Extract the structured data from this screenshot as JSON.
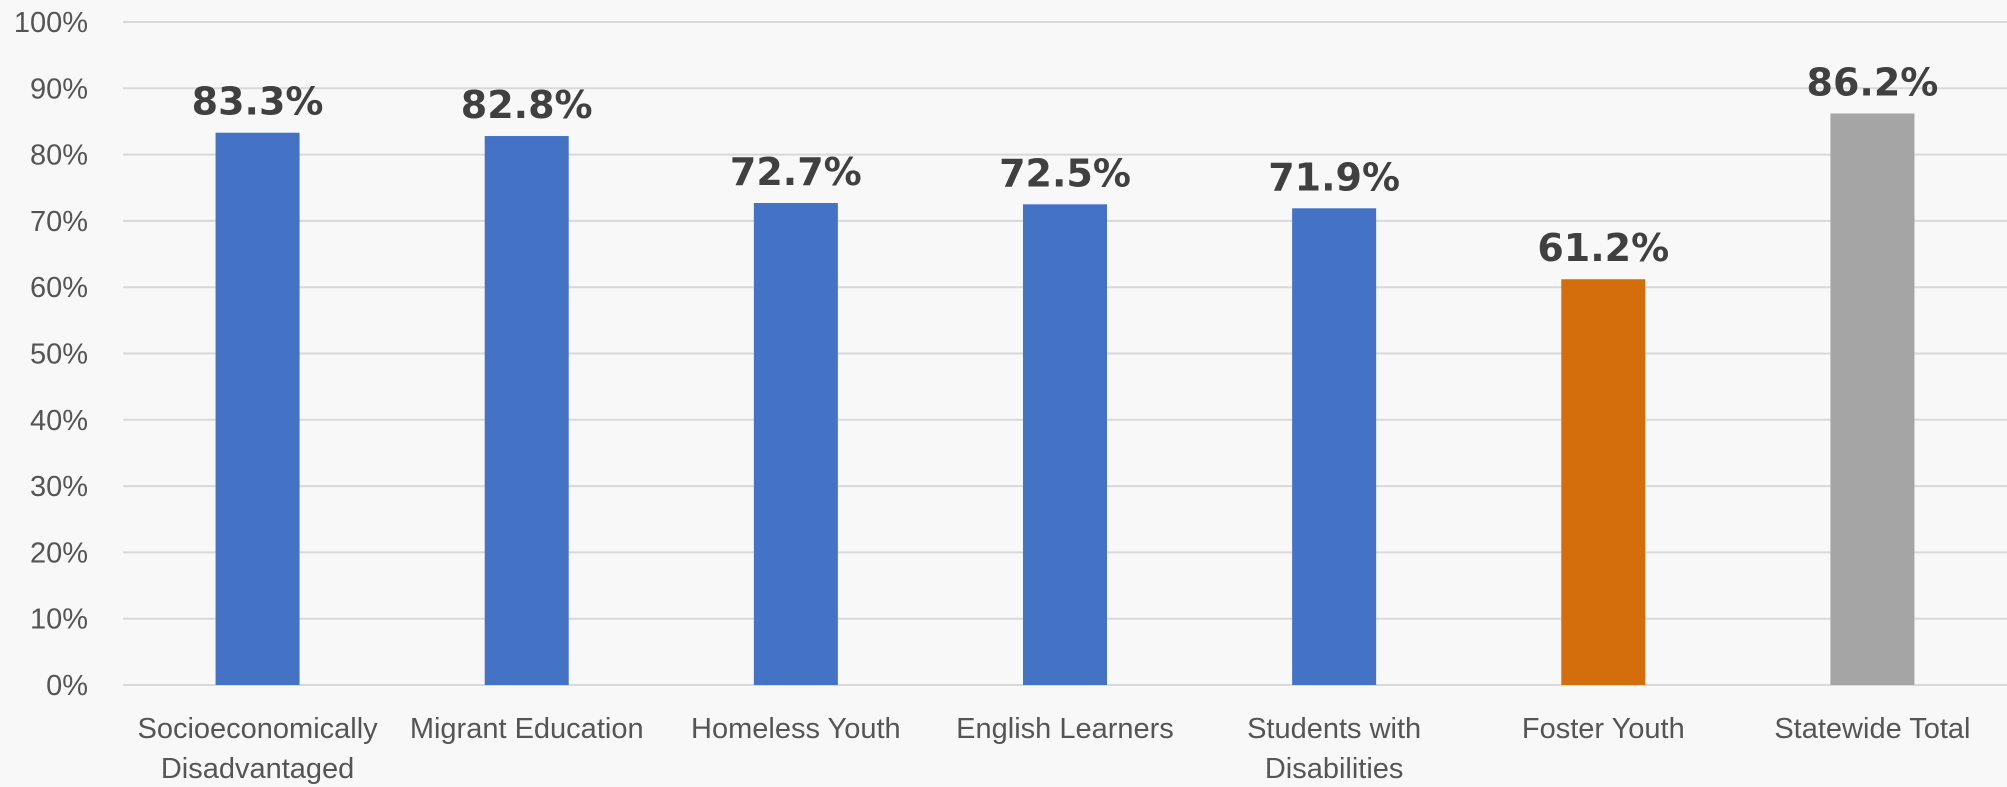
{
  "chart_data": {
    "type": "bar",
    "categories": [
      [
        "Socioeconomically",
        "Disadvantaged"
      ],
      [
        "Migrant Education"
      ],
      [
        "Homeless Youth"
      ],
      [
        "English Learners"
      ],
      [
        "Students with",
        "Disabilities"
      ],
      [
        "Foster Youth"
      ],
      [
        "Statewide Total"
      ]
    ],
    "values": [
      83.3,
      82.8,
      72.7,
      72.5,
      71.9,
      61.2,
      86.2
    ],
    "data_labels": [
      "83.3%",
      "82.8%",
      "72.7%",
      "72.5%",
      "71.9%",
      "61.2%",
      "86.2%"
    ],
    "bar_colors": [
      "#4472c4",
      "#4472c4",
      "#4472c4",
      "#4472c4",
      "#4472c4",
      "#d46d0b",
      "#a5a5a5"
    ],
    "y_ticks": [
      0,
      10,
      20,
      30,
      40,
      50,
      60,
      70,
      80,
      90,
      100
    ],
    "y_tick_labels": [
      "0%",
      "10%",
      "20%",
      "30%",
      "40%",
      "50%",
      "60%",
      "70%",
      "80%",
      "90%",
      "100%"
    ],
    "ylim": [
      0,
      100
    ],
    "grid": true,
    "legend": "none",
    "title": "",
    "xlabel": "",
    "ylabel": ""
  }
}
